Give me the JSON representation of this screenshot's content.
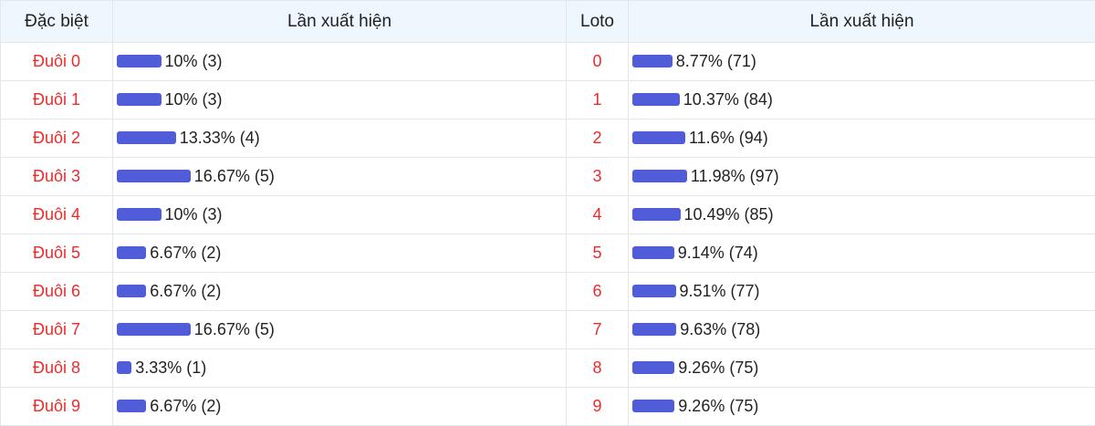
{
  "headers": [
    "Đặc biệt",
    "Lần xuất hiện",
    "Loto",
    "Lần xuất hiện"
  ],
  "bar_color": "#515cd9",
  "label_color": "#ee2a2a",
  "rows": [
    {
      "dac_biet": "Đuôi 0",
      "db_pct": 10,
      "db_text": "10% (3)",
      "loto": "0",
      "loto_pct": 8.77,
      "loto_text": "8.77% (71)"
    },
    {
      "dac_biet": "Đuôi 1",
      "db_pct": 10,
      "db_text": "10% (3)",
      "loto": "1",
      "loto_pct": 10.37,
      "loto_text": "10.37% (84)"
    },
    {
      "dac_biet": "Đuôi 2",
      "db_pct": 13.33,
      "db_text": "13.33% (4)",
      "loto": "2",
      "loto_pct": 11.6,
      "loto_text": "11.6% (94)"
    },
    {
      "dac_biet": "Đuôi 3",
      "db_pct": 16.67,
      "db_text": "16.67% (5)",
      "loto": "3",
      "loto_pct": 11.98,
      "loto_text": "11.98% (97)"
    },
    {
      "dac_biet": "Đuôi 4",
      "db_pct": 10,
      "db_text": "10% (3)",
      "loto": "4",
      "loto_pct": 10.49,
      "loto_text": "10.49% (85)"
    },
    {
      "dac_biet": "Đuôi 5",
      "db_pct": 6.67,
      "db_text": "6.67% (2)",
      "loto": "5",
      "loto_pct": 9.14,
      "loto_text": "9.14% (74)"
    },
    {
      "dac_biet": "Đuôi 6",
      "db_pct": 6.67,
      "db_text": "6.67% (2)",
      "loto": "6",
      "loto_pct": 9.51,
      "loto_text": "9.51% (77)"
    },
    {
      "dac_biet": "Đuôi 7",
      "db_pct": 16.67,
      "db_text": "16.67% (5)",
      "loto": "7",
      "loto_pct": 9.63,
      "loto_text": "9.63% (78)"
    },
    {
      "dac_biet": "Đuôi 8",
      "db_pct": 3.33,
      "db_text": "3.33% (1)",
      "loto": "8",
      "loto_pct": 9.26,
      "loto_text": "9.26% (75)"
    },
    {
      "dac_biet": "Đuôi 9",
      "db_pct": 6.67,
      "db_text": "6.67% (2)",
      "loto": "9",
      "loto_pct": 9.26,
      "loto_text": "9.26% (75)"
    }
  ]
}
